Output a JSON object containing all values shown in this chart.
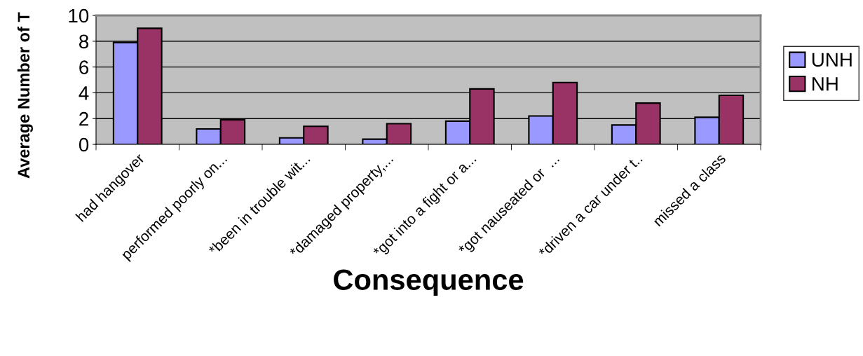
{
  "chart_data": {
    "type": "bar",
    "xlabel": "Consequence",
    "ylabel": "Average Number of T",
    "categories": [
      "had hangover",
      "performed poorly on...",
      "*been in trouble wit...",
      "*damaged property,...",
      "*got into a fight or a...",
      "*got nauseated or  ...",
      "*driven a car under t..",
      "missed a class"
    ],
    "series": [
      {
        "name": "UNH",
        "color": "#9999ff",
        "values": [
          7.9,
          1.2,
          0.5,
          0.4,
          1.8,
          2.2,
          1.5,
          2.1
        ]
      },
      {
        "name": "NH",
        "color": "#993366",
        "values": [
          9.0,
          1.9,
          1.4,
          1.6,
          4.3,
          4.8,
          3.2,
          3.8
        ]
      }
    ],
    "ylim": [
      0,
      10
    ],
    "yticks": [
      0,
      2,
      4,
      6,
      8,
      10
    ],
    "grid": "y",
    "legend": "right"
  }
}
